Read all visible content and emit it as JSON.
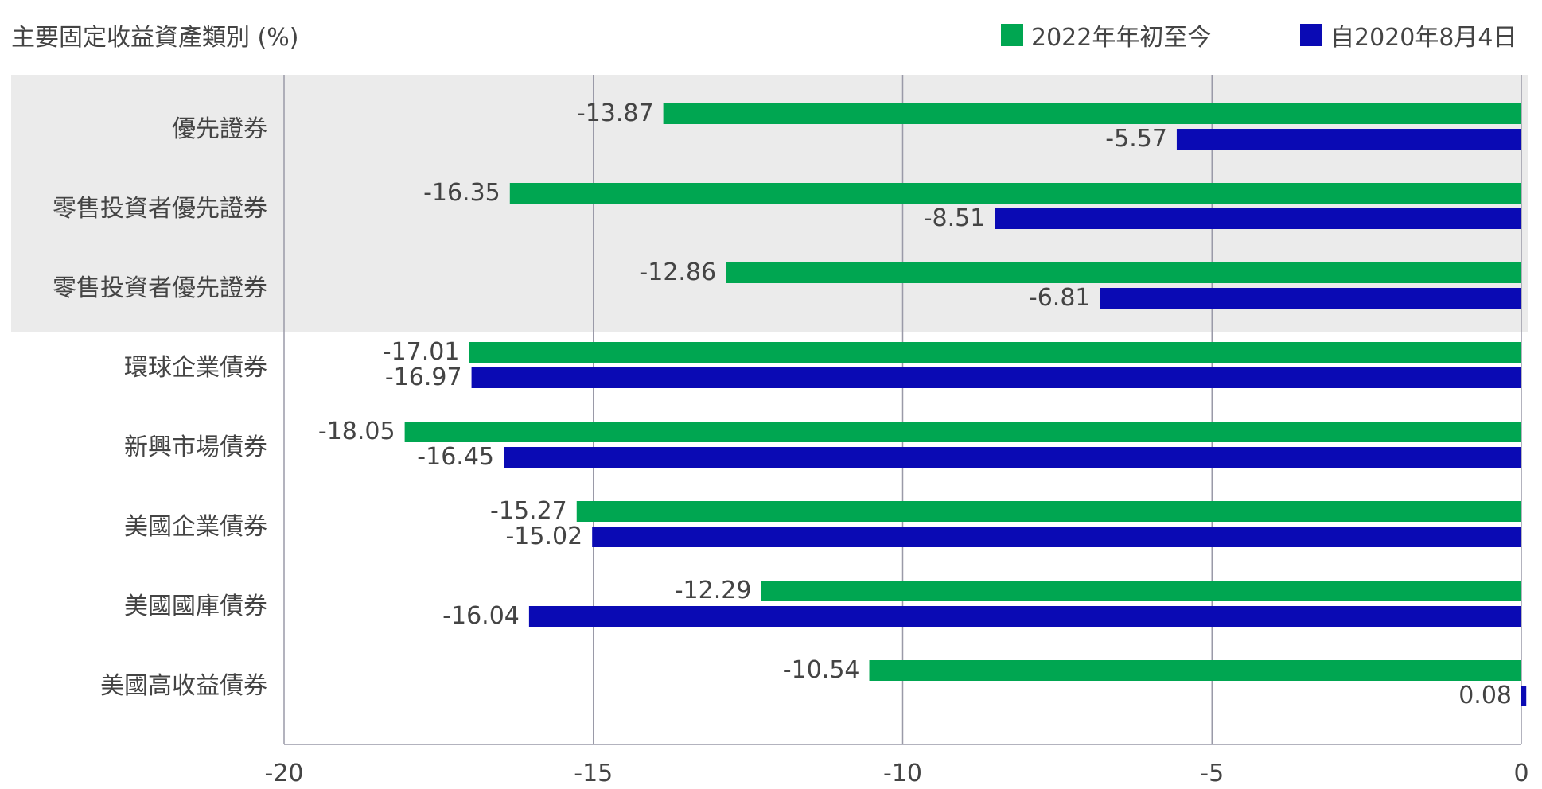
{
  "chart_data": {
    "type": "bar",
    "orientation": "horizontal",
    "title": "主要固定收益資產類別 (%)",
    "categories": [
      "優先證券",
      "零售投資者優先證券",
      "零售投資者優先證券",
      "環球企業債券",
      "新興市場債券",
      "美國企業債券",
      "美國國庫債券",
      "美國高收益債券"
    ],
    "series": [
      {
        "name": "2022年年初至今",
        "color": "#00A651",
        "values": [
          -13.87,
          -16.35,
          -12.86,
          -17.01,
          -18.05,
          -15.27,
          -12.29,
          -10.54
        ]
      },
      {
        "name": "自2020年8月4日",
        "color": "#0A0AB4",
        "values": [
          -5.57,
          -8.51,
          -6.81,
          -16.97,
          -16.45,
          -15.02,
          -16.04,
          0.08
        ]
      }
    ],
    "value_labels": [
      [
        "-13.87",
        "-16.35",
        "-12.86",
        "-17.01",
        "-18.05",
        "-15.27",
        "-12.29",
        "-10.54"
      ],
      [
        "-5.57",
        "-8.51",
        "-6.81",
        "-16.97",
        "-16.45",
        "-15.02",
        "-16.04",
        "0.08"
      ]
    ],
    "xlim": [
      -20,
      0
    ],
    "xticks": [
      -20,
      -15,
      -10,
      -5,
      0
    ],
    "xtick_labels": [
      "-20",
      "-15",
      "-10",
      "-5",
      "0"
    ],
    "highlight_categories": [
      0,
      1,
      2
    ],
    "highlight_color": "#EBEBEB",
    "grid": true,
    "legend_position": "top-right"
  }
}
